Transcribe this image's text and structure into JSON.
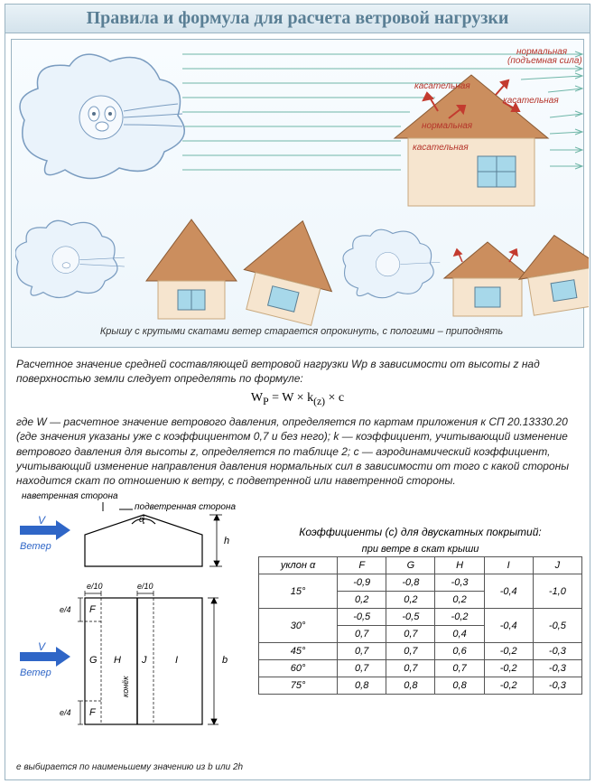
{
  "title": "Правила и формула для расчета ветровой нагрузки",
  "top_illustration": {
    "labels": {
      "normal_lift": "нормальная\n(подъемная сила)",
      "tangential_1": "касательная",
      "tangential_2": "касательная",
      "normal_2": "нормальная",
      "tangential_3": "касательная"
    },
    "caption": "Крышу с крутыми скатами ветер старается опрокинуть, с пологими – приподнять",
    "colors": {
      "sky_line": "#6fb6a8",
      "cloud": "#c9dff0",
      "cloud_stroke": "#6a8fb5",
      "roof": "#c88b5a",
      "wall": "#f5e3cc",
      "window": "#9fd4e8",
      "arrow": "#c33b2f",
      "label": "#b5342a"
    }
  },
  "body": {
    "intro": "Расчетное значение средней составляющей ветровой нагрузки Wp в зависимости от высоты z над поверхностью земли следует определять по формуле:",
    "formula_html": "W<sub>P</sub> = W × k<sub>(z)</sub> × c",
    "desc": "где W — расчетное значение ветрового давления, определяется по картам приложения к СП 20.13330.20 (где значения указаны уже с коэффициентом 0,7 и без него); k — коэффициент, учитывающий изменение ветрового давления для высоты z, определяется по таблице 2; с — аэродинамический коэффициент, учитывающий изменение направления давления нормальных сил в зависимости от того с какой стороны находится скат по отношению к ветру, с подветренной или наветренной стороны."
  },
  "diagram": {
    "windward": "наветренная сторона",
    "leeward": "подветренная сторона",
    "wind_v": "V",
    "wind_label": "Ветер",
    "alpha": "α",
    "h": "h",
    "b": "b",
    "e10": "e/10",
    "e4": "e/4",
    "zones": {
      "F": "F",
      "G": "G",
      "H": "H",
      "J": "J",
      "I": "I"
    },
    "ridge": "конёк",
    "footnote": "e выбирается по наименьшему значению  из b или 2h",
    "arrow_color": "#2f66c7"
  },
  "table": {
    "caption": "Коэффициенты (с) для двускатных покрытий:",
    "sub": "при ветре в скат крыши",
    "columns": [
      "уклон α",
      "F",
      "G",
      "H",
      "I",
      "J"
    ],
    "rows": [
      {
        "angle": "15°",
        "F": [
          "-0,9",
          "0,2"
        ],
        "G": [
          "-0,8",
          "0,2"
        ],
        "H": [
          "-0,3",
          "0,2"
        ],
        "I": "-0,4",
        "J": "-1,0"
      },
      {
        "angle": "30°",
        "F": [
          "-0,5",
          "0,7"
        ],
        "G": [
          "-0,5",
          "0,7"
        ],
        "H": [
          "-0,2",
          "0,4"
        ],
        "I": "-0,4",
        "J": "-0,5"
      },
      {
        "angle": "45°",
        "F": "0,7",
        "G": "0,7",
        "H": "0,6",
        "I": "-0,2",
        "J": "-0,3"
      },
      {
        "angle": "60°",
        "F": "0,7",
        "G": "0,7",
        "H": "0,7",
        "I": "-0,2",
        "J": "-0,3"
      },
      {
        "angle": "75°",
        "F": "0,8",
        "G": "0,8",
        "H": "0,8",
        "I": "-0,2",
        "J": "-0,3"
      }
    ]
  }
}
